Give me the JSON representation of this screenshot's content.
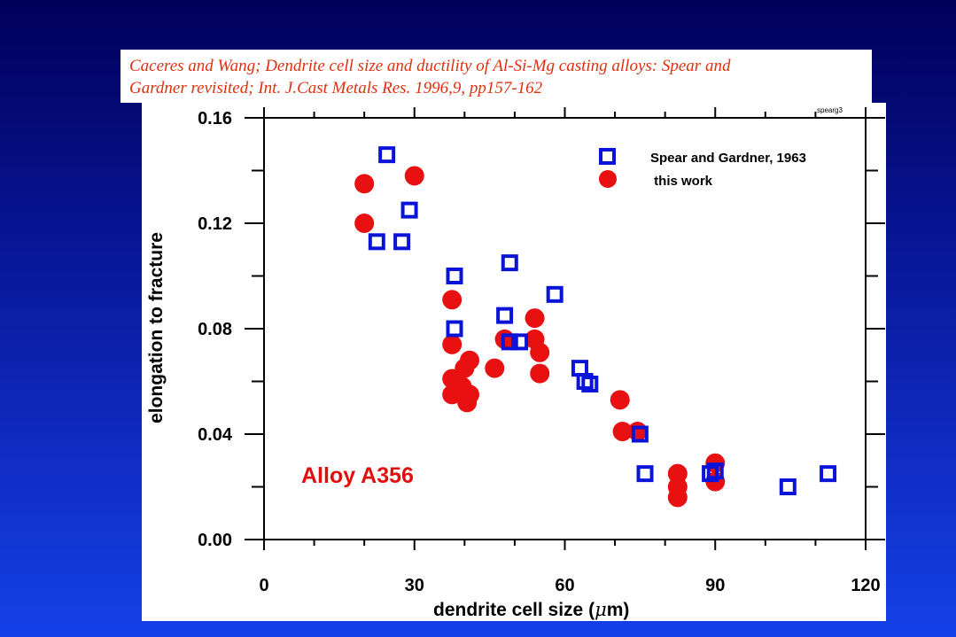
{
  "citation": {
    "line1": "Caceres and Wang; Dendrite cell size and ductility of Al-Si-Mg casting alloys: Spear and",
    "line2": "Gardner revisited; Int. J.Cast Metals Res. 1996,9, pp157-162"
  },
  "chart_data": {
    "type": "scatter",
    "corner_tag": "spearg3",
    "annotation": "Alloy A356",
    "xlabel_main": "dendrite cell size  (",
    "xlabel_mu": "μ",
    "xlabel_unit": "m)",
    "ylabel": "elongation to fracture",
    "xlim": [
      0,
      120
    ],
    "ylim": [
      0.0,
      0.16
    ],
    "x_ticks": [
      0,
      30,
      60,
      90,
      120
    ],
    "x_tick_labels": [
      "0",
      "30",
      "60",
      "90",
      "120"
    ],
    "y_ticks": [
      0.0,
      0.04,
      0.08,
      0.12,
      0.16
    ],
    "y_tick_labels": [
      "0.00",
      "0.04",
      "0.08",
      "0.12",
      "0.16"
    ],
    "grid": false,
    "legend_position": "top-right",
    "series": [
      {
        "name": "Spear and Gardner, 1963",
        "marker": "open-square",
        "color": "#0a14d8",
        "points": [
          [
            24.5,
            0.146
          ],
          [
            22.5,
            0.113
          ],
          [
            27.5,
            0.113
          ],
          [
            29,
            0.125
          ],
          [
            38,
            0.1
          ],
          [
            38,
            0.08
          ],
          [
            49,
            0.105
          ],
          [
            48,
            0.085
          ],
          [
            49,
            0.075
          ],
          [
            51,
            0.075
          ],
          [
            58,
            0.093
          ],
          [
            63,
            0.065
          ],
          [
            64,
            0.06
          ],
          [
            65,
            0.059
          ],
          [
            75,
            0.04
          ],
          [
            76,
            0.025
          ],
          [
            89,
            0.025
          ],
          [
            90,
            0.026
          ],
          [
            104.5,
            0.02
          ],
          [
            112.5,
            0.025
          ]
        ]
      },
      {
        "name": " this work",
        "marker": "filled-circle",
        "color": "#e81010",
        "points": [
          [
            20,
            0.135
          ],
          [
            20,
            0.12
          ],
          [
            30,
            0.138
          ],
          [
            37.5,
            0.091
          ],
          [
            37.5,
            0.074
          ],
          [
            37.5,
            0.061
          ],
          [
            37.5,
            0.055
          ],
          [
            40,
            0.065
          ],
          [
            41,
            0.068
          ],
          [
            41,
            0.055
          ],
          [
            40.5,
            0.052
          ],
          [
            39.5,
            0.058
          ],
          [
            46,
            0.065
          ],
          [
            48,
            0.076
          ],
          [
            54,
            0.084
          ],
          [
            54,
            0.076
          ],
          [
            55,
            0.071
          ],
          [
            55,
            0.063
          ],
          [
            71,
            0.053
          ],
          [
            71.5,
            0.041
          ],
          [
            74.5,
            0.041
          ],
          [
            82.5,
            0.025
          ],
          [
            82.5,
            0.02
          ],
          [
            82.5,
            0.016
          ],
          [
            90,
            0.029
          ],
          [
            90,
            0.022
          ]
        ]
      }
    ]
  }
}
